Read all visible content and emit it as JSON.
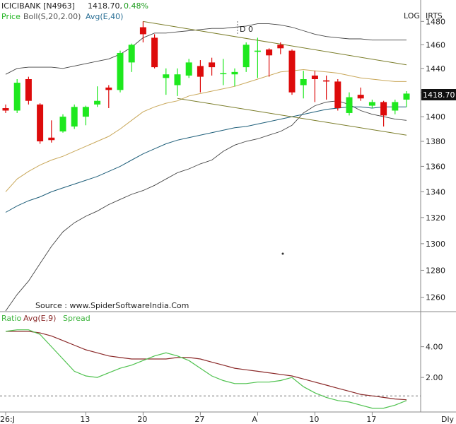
{
  "header": {
    "symbol": "ICICIBANK [N4963]",
    "last": "1418.70,",
    "change": "0.48%",
    "ind_price": "Price",
    "ind_boll": "Boll(S,20,2.00)",
    "ind_avg": "Avg(E,40)",
    "log_label": "LOG",
    "irts_label": "IRTS",
    "marker_label": "D 0"
  },
  "source_text": "Source : www.SpiderSoftwareIndia.Com",
  "price_tag": "1418.70",
  "lower_panel": {
    "ratio": "Ratio",
    "avg": "Avg(E,9)",
    "spread": "Spread"
  },
  "footer": {
    "dly": "Dly"
  },
  "colors": {
    "bull": "#1ee81e",
    "bear": "#dd0b0b",
    "boll_outer": "#444444",
    "boll_mid": "#c9a85a",
    "avg40": "#1f5f7a",
    "channel": "#7b7d2a",
    "ratio": "#4fc24f",
    "ratio_avg": "#8b2a2a"
  },
  "chart_data": [
    {
      "type": "candlestick",
      "scale": "log",
      "ylim": [
        1250,
        1490
      ],
      "yticks": [
        1260,
        1280,
        1300,
        1320,
        1340,
        1360,
        1380,
        1400,
        1420,
        1440,
        1460,
        1480
      ],
      "xticks": [
        {
          "index": 0,
          "label": "26:J"
        },
        {
          "index": 7,
          "label": "13"
        },
        {
          "index": 12,
          "label": "20"
        },
        {
          "index": 17,
          "label": "27"
        },
        {
          "index": 22,
          "label": "A"
        },
        {
          "index": 27,
          "label": "10"
        },
        {
          "index": 32,
          "label": "17"
        }
      ],
      "candles": [
        {
          "o": 1407,
          "h": 1410,
          "l": 1403,
          "c": 1405
        },
        {
          "o": 1405,
          "h": 1431,
          "l": 1403,
          "c": 1428
        },
        {
          "o": 1431,
          "h": 1433,
          "l": 1410,
          "c": 1413
        },
        {
          "o": 1410,
          "h": 1411,
          "l": 1378,
          "c": 1380
        },
        {
          "o": 1383,
          "h": 1397,
          "l": 1379,
          "c": 1381
        },
        {
          "o": 1388,
          "h": 1402,
          "l": 1387,
          "c": 1400
        },
        {
          "o": 1392,
          "h": 1410,
          "l": 1390,
          "c": 1408
        },
        {
          "o": 1400,
          "h": 1409,
          "l": 1393,
          "c": 1408
        },
        {
          "o": 1410,
          "h": 1425,
          "l": 1408,
          "c": 1413
        },
        {
          "o": 1424,
          "h": 1426,
          "l": 1407,
          "c": 1422
        },
        {
          "o": 1422,
          "h": 1455,
          "l": 1420,
          "c": 1453
        },
        {
          "o": 1445,
          "h": 1461,
          "l": 1437,
          "c": 1460
        },
        {
          "o": 1475,
          "h": 1480,
          "l": 1462,
          "c": 1469
        },
        {
          "o": 1466,
          "h": 1469,
          "l": 1440,
          "c": 1441
        },
        {
          "o": 1432,
          "h": 1440,
          "l": 1418,
          "c": 1435
        },
        {
          "o": 1426,
          "h": 1440,
          "l": 1417,
          "c": 1435
        },
        {
          "o": 1434,
          "h": 1448,
          "l": 1432,
          "c": 1445
        },
        {
          "o": 1442,
          "h": 1447,
          "l": 1420,
          "c": 1433
        },
        {
          "o": 1445,
          "h": 1449,
          "l": 1434,
          "c": 1441
        },
        {
          "o": 1436,
          "h": 1448,
          "l": 1426,
          "c": 1436
        },
        {
          "o": 1435,
          "h": 1440,
          "l": 1425,
          "c": 1437
        },
        {
          "o": 1441,
          "h": 1462,
          "l": 1437,
          "c": 1460
        },
        {
          "o": 1454,
          "h": 1466,
          "l": 1432,
          "c": 1455
        },
        {
          "o": 1456,
          "h": 1457,
          "l": 1433,
          "c": 1451
        },
        {
          "o": 1460,
          "h": 1462,
          "l": 1452,
          "c": 1457
        },
        {
          "o": 1455,
          "h": 1456,
          "l": 1418,
          "c": 1420
        },
        {
          "o": 1426,
          "h": 1438,
          "l": 1415,
          "c": 1431
        },
        {
          "o": 1434,
          "h": 1438,
          "l": 1412,
          "c": 1431
        },
        {
          "o": 1430,
          "h": 1434,
          "l": 1414,
          "c": 1429
        },
        {
          "o": 1429,
          "h": 1431,
          "l": 1405,
          "c": 1407
        },
        {
          "o": 1403,
          "h": 1420,
          "l": 1401,
          "c": 1416
        },
        {
          "o": 1418,
          "h": 1424,
          "l": 1413,
          "c": 1415
        },
        {
          "o": 1409,
          "h": 1414,
          "l": 1407,
          "c": 1412
        },
        {
          "o": 1412,
          "h": 1413,
          "l": 1392,
          "c": 1401
        },
        {
          "o": 1405,
          "h": 1414,
          "l": 1402,
          "c": 1412
        },
        {
          "o": 1414,
          "h": 1421,
          "l": 1408,
          "c": 1419
        }
      ],
      "boll_upper": [
        1435,
        1440,
        1441,
        1441,
        1441,
        1440,
        1442,
        1444,
        1446,
        1448,
        1452,
        1458,
        1466,
        1470,
        1470,
        1471,
        1472,
        1473,
        1474,
        1474,
        1475,
        1476,
        1478,
        1478,
        1477,
        1475,
        1472,
        1469,
        1467,
        1466,
        1465,
        1465,
        1464,
        1464,
        1464,
        1464
      ],
      "boll_mid": [
        1340,
        1350,
        1356,
        1361,
        1365,
        1368,
        1372,
        1376,
        1380,
        1384,
        1390,
        1397,
        1404,
        1408,
        1411,
        1413,
        1417,
        1419,
        1421,
        1423,
        1425,
        1428,
        1431,
        1434,
        1437,
        1438,
        1439,
        1438,
        1437,
        1436,
        1434,
        1432,
        1431,
        1430,
        1429,
        1429
      ],
      "boll_lower": [
        1250,
        1262,
        1272,
        1285,
        1298,
        1309,
        1316,
        1321,
        1325,
        1330,
        1334,
        1338,
        1341,
        1345,
        1350,
        1355,
        1358,
        1362,
        1365,
        1372,
        1377,
        1380,
        1382,
        1385,
        1388,
        1393,
        1403,
        1409,
        1412,
        1413,
        1410,
        1405,
        1402,
        1400,
        1398,
        1397
      ],
      "avg40": [
        1324,
        1329,
        1333,
        1336,
        1340,
        1343,
        1346,
        1349,
        1352,
        1356,
        1360,
        1365,
        1370,
        1374,
        1378,
        1381,
        1383,
        1385,
        1387,
        1389,
        1391,
        1392,
        1394,
        1396,
        1398,
        1400,
        1402,
        1404,
        1406,
        1407,
        1408,
        1408,
        1407,
        1408,
        1408,
        1408
      ],
      "channel_upper": [
        [
          12,
          1480
        ],
        [
          35,
          1443
        ]
      ],
      "channel_lower": [
        [
          15,
          1415
        ],
        [
          35,
          1385
        ]
      ]
    },
    {
      "type": "line",
      "yticks": [
        2.0,
        4.0
      ],
      "ylim": [
        -0.2,
        5.5
      ],
      "dashed_level": 0.8,
      "ratio": [
        5.0,
        5.1,
        5.1,
        4.8,
        4.0,
        3.2,
        2.4,
        2.1,
        2.0,
        2.3,
        2.6,
        2.8,
        3.1,
        3.4,
        3.6,
        3.4,
        3.1,
        2.6,
        2.1,
        1.8,
        1.6,
        1.6,
        1.7,
        1.7,
        1.8,
        2.0,
        1.4,
        1.0,
        0.7,
        0.5,
        0.4,
        0.2,
        0.0,
        0.0,
        0.2,
        0.5
      ],
      "avg": [
        5.0,
        5.0,
        5.0,
        4.9,
        4.7,
        4.4,
        4.1,
        3.8,
        3.6,
        3.4,
        3.3,
        3.2,
        3.2,
        3.2,
        3.2,
        3.3,
        3.3,
        3.2,
        3.0,
        2.8,
        2.6,
        2.5,
        2.4,
        2.3,
        2.2,
        2.1,
        1.9,
        1.7,
        1.5,
        1.3,
        1.1,
        0.9,
        0.8,
        0.7,
        0.6,
        0.55
      ]
    }
  ]
}
